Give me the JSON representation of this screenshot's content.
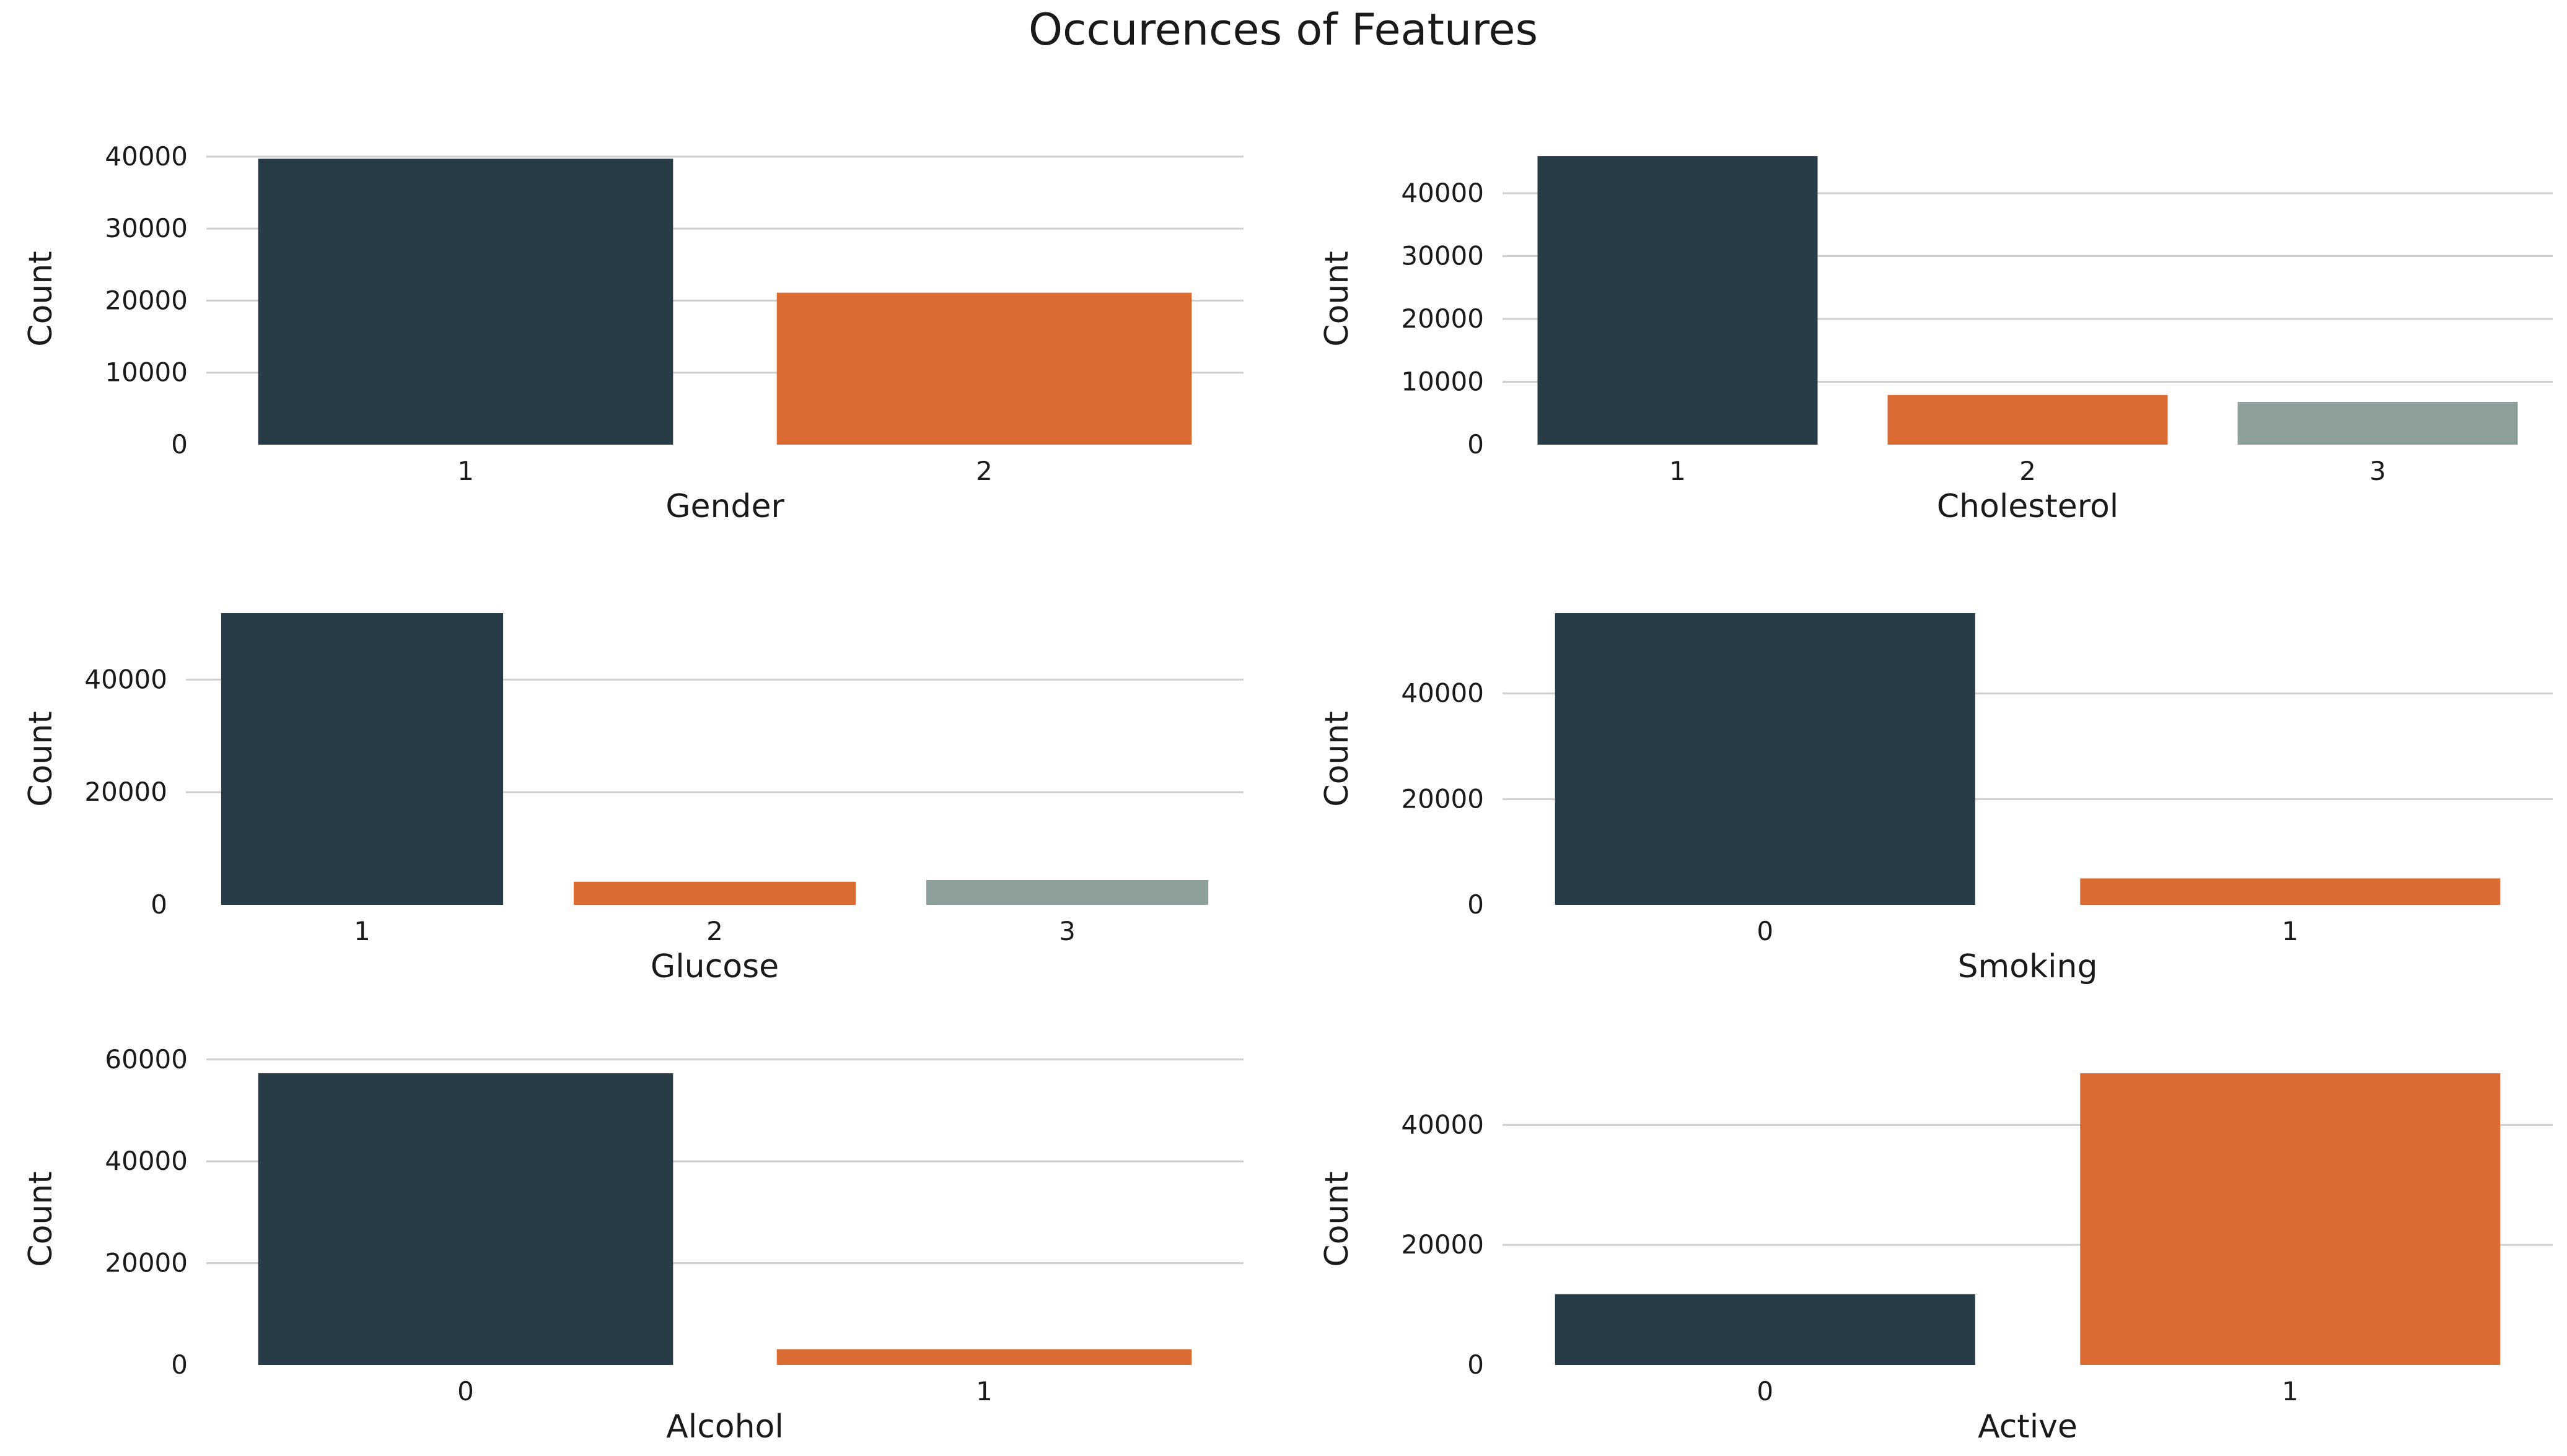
{
  "title": "Occurences of Features",
  "colors": {
    "bar_palette": [
      "#283c48",
      "#d96b33",
      "#8c9f9b"
    ],
    "grid": "#cfcfcf",
    "text": "#1a1a1a",
    "background": "#ffffff"
  },
  "chart_data": [
    {
      "type": "bar",
      "title": "",
      "categories": [
        "1",
        "2"
      ],
      "values": [
        39700,
        21100
      ],
      "xlabel": "Gender",
      "ylabel": "Count",
      "ylim": [
        0,
        40500
      ],
      "yticks": [
        0,
        10000,
        20000,
        30000,
        40000
      ],
      "grid": true
    },
    {
      "type": "bar",
      "title": "",
      "categories": [
        "1",
        "2",
        "3"
      ],
      "values": [
        45900,
        7900,
        6800
      ],
      "xlabel": "Cholesterol",
      "ylabel": "Count",
      "ylim": [
        0,
        46400
      ],
      "yticks": [
        0,
        10000,
        20000,
        30000,
        40000
      ],
      "grid": true
    },
    {
      "type": "bar",
      "title": "",
      "categories": [
        "1",
        "2",
        "3"
      ],
      "values": [
        51800,
        4100,
        4400
      ],
      "xlabel": "Glucose",
      "ylabel": "Count",
      "ylim": [
        0,
        51800
      ],
      "yticks": [
        0,
        20000,
        40000
      ],
      "grid": true
    },
    {
      "type": "bar",
      "title": "",
      "categories": [
        "0",
        "1"
      ],
      "values": [
        55200,
        5000
      ],
      "xlabel": "Smoking",
      "ylabel": "Count",
      "ylim": [
        0,
        55200
      ],
      "yticks": [
        0,
        20000,
        40000
      ],
      "grid": true
    },
    {
      "type": "bar",
      "title": "",
      "categories": [
        "0",
        "1"
      ],
      "values": [
        57300,
        3100
      ],
      "xlabel": "Alcohol",
      "ylabel": "Count",
      "ylim": [
        0,
        57300
      ],
      "yticks": [
        0,
        20000,
        40000,
        60000
      ],
      "grid": true
    },
    {
      "type": "bar",
      "title": "",
      "categories": [
        "0",
        "1"
      ],
      "values": [
        11800,
        48600
      ],
      "xlabel": "Active",
      "ylabel": "Count",
      "ylim": [
        0,
        48600
      ],
      "yticks": [
        0,
        20000,
        40000
      ],
      "grid": true
    }
  ]
}
